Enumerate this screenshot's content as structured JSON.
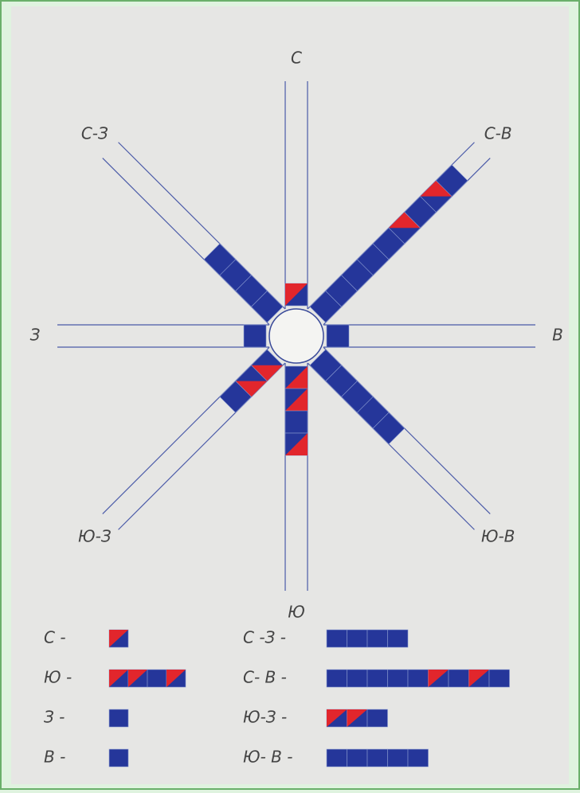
{
  "directions": [
    {
      "label": "С",
      "legend_label": "С -",
      "angle": 0,
      "days": 1,
      "cell_colors": [
        "#e2262c"
      ]
    },
    {
      "label": "С-В",
      "legend_label": "С- В -",
      "angle": 45,
      "days": 9,
      "cell_colors": [
        "#25369a",
        "#25369a",
        "#25369a",
        "#25369a",
        "#25369a",
        "#e2262c",
        "#25369a",
        "#e2262c",
        "#25369a"
      ]
    },
    {
      "label": "В",
      "legend_label": "В -",
      "angle": 90,
      "days": 1,
      "cell_colors": [
        "#25369a"
      ]
    },
    {
      "label": "Ю-В",
      "legend_label": "Ю- В -",
      "angle": 135,
      "days": 5,
      "cell_colors": [
        "#25369a",
        "#25369a",
        "#25369a",
        "#25369a",
        "#25369a"
      ]
    },
    {
      "label": "Ю",
      "legend_label": "Ю -",
      "angle": 180,
      "days": 4,
      "cell_colors": [
        "#e2262c",
        "#e2262c",
        "#25369a",
        "#e2262c"
      ]
    },
    {
      "label": "Ю-З",
      "legend_label": "Ю-З -",
      "angle": 225,
      "days": 3,
      "cell_colors": [
        "#e2262c",
        "#e2262c",
        "#25369a"
      ]
    },
    {
      "label": "З",
      "legend_label": "З -",
      "angle": 270,
      "days": 1,
      "cell_colors": [
        "#25369a"
      ]
    },
    {
      "label": "С-З",
      "legend_label": "С -З -",
      "angle": 315,
      "days": 4,
      "cell_colors": [
        "#25369a",
        "#25369a",
        "#25369a",
        "#25369a"
      ]
    }
  ]
}
